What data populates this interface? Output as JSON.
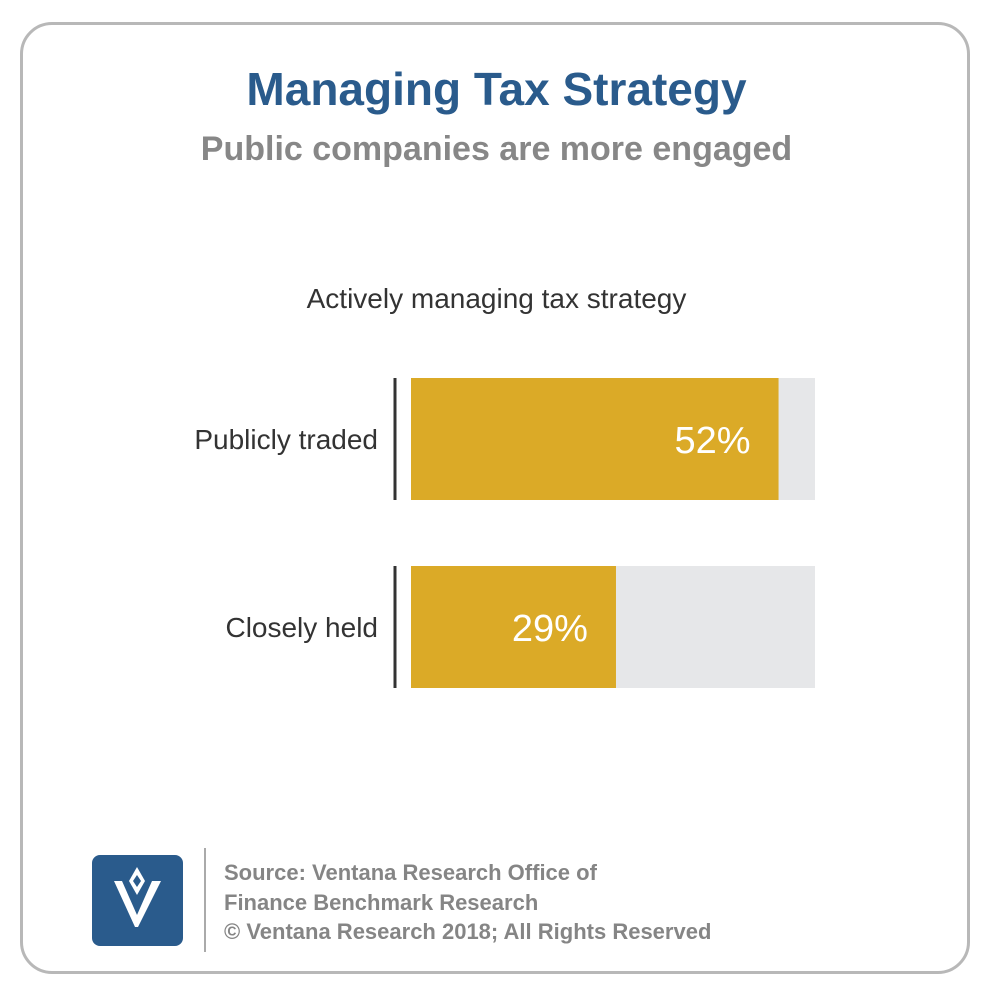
{
  "header": {
    "title": "Managing Tax Strategy",
    "subtitle": "Public companies are more engaged"
  },
  "chart_data": {
    "type": "bar",
    "orientation": "horizontal",
    "title": "Actively managing tax strategy",
    "categories": [
      "Publicly traded",
      "Closely held"
    ],
    "values": [
      52,
      29
    ],
    "value_labels": [
      "52%",
      "29%"
    ],
    "xlim": [
      0,
      100
    ],
    "grid": false,
    "legend": "none",
    "colors": {
      "bar": "#dbaa27",
      "track": "#e6e7e9",
      "axis": "#333333",
      "label_inside": "#ffffff"
    }
  },
  "footer": {
    "logo_icon": "ventana-v-logo-icon",
    "source_line1": "Source: Ventana Research Office of",
    "source_line2": "Finance Benchmark Research",
    "copyright": "© Ventana Research 2018; All Rights Reserved"
  }
}
